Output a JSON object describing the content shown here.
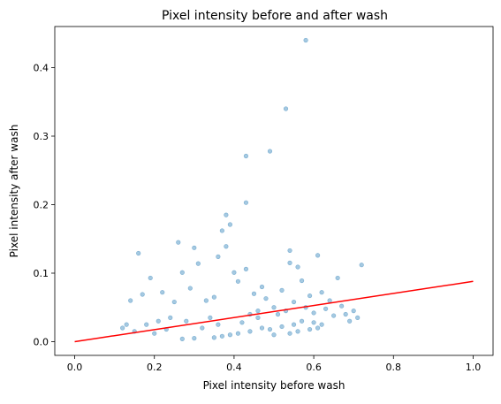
{
  "chart_data": {
    "type": "scatter",
    "title": "Pixel intensity before and after wash",
    "xlabel": "Pixel intensity before wash",
    "ylabel": "Pixel intensity after wash",
    "xlim": [
      -0.05,
      1.05
    ],
    "ylim": [
      -0.02,
      0.46
    ],
    "xticks": [
      0.0,
      0.2,
      0.4,
      0.6,
      0.8,
      1.0
    ],
    "xtick_labels": [
      "0.0",
      "0.2",
      "0.4",
      "0.6",
      "0.8",
      "1.0"
    ],
    "yticks": [
      0.0,
      0.1,
      0.2,
      0.3,
      0.4
    ],
    "ytick_labels": [
      "0.0",
      "0.1",
      "0.2",
      "0.3",
      "0.4"
    ],
    "grid": false,
    "colors": {
      "points": "#1f77b4",
      "fit_line": "#ff0000"
    },
    "series": [
      {
        "kind": "points",
        "x": [
          0.58,
          0.53,
          0.49,
          0.43,
          0.43,
          0.38,
          0.39,
          0.37,
          0.54,
          0.38,
          0.26,
          0.3,
          0.16,
          0.36,
          0.61,
          0.31,
          0.54,
          0.56,
          0.19,
          0.4,
          0.43,
          0.27,
          0.41,
          0.57,
          0.66,
          0.72,
          0.17,
          0.14,
          0.22,
          0.25,
          0.29,
          0.33,
          0.35,
          0.45,
          0.47,
          0.48,
          0.52,
          0.55,
          0.59,
          0.62,
          0.64,
          0.67,
          0.7,
          0.5,
          0.46,
          0.44,
          0.34,
          0.28,
          0.24,
          0.21,
          0.18,
          0.12,
          0.13,
          0.15,
          0.2,
          0.23,
          0.32,
          0.36,
          0.42,
          0.46,
          0.51,
          0.53,
          0.58,
          0.6,
          0.63,
          0.65,
          0.68,
          0.69,
          0.71,
          0.47,
          0.49,
          0.52,
          0.55,
          0.57,
          0.6,
          0.62,
          0.44,
          0.41,
          0.39,
          0.37,
          0.35,
          0.3,
          0.27,
          0.5,
          0.54,
          0.56,
          0.59,
          0.61
        ],
        "y": [
          0.44,
          0.34,
          0.278,
          0.271,
          0.203,
          0.185,
          0.171,
          0.162,
          0.133,
          0.139,
          0.145,
          0.137,
          0.129,
          0.124,
          0.126,
          0.114,
          0.115,
          0.109,
          0.093,
          0.101,
          0.106,
          0.101,
          0.088,
          0.089,
          0.093,
          0.112,
          0.069,
          0.06,
          0.072,
          0.058,
          0.078,
          0.06,
          0.065,
          0.07,
          0.08,
          0.063,
          0.075,
          0.058,
          0.067,
          0.072,
          0.06,
          0.052,
          0.045,
          0.05,
          0.045,
          0.04,
          0.035,
          0.03,
          0.035,
          0.03,
          0.025,
          0.02,
          0.025,
          0.015,
          0.012,
          0.018,
          0.02,
          0.025,
          0.028,
          0.035,
          0.04,
          0.045,
          0.05,
          0.042,
          0.048,
          0.038,
          0.04,
          0.03,
          0.035,
          0.02,
          0.018,
          0.022,
          0.025,
          0.03,
          0.028,
          0.025,
          0.015,
          0.012,
          0.01,
          0.008,
          0.006,
          0.005,
          0.004,
          0.01,
          0.012,
          0.015,
          0.018,
          0.02
        ]
      },
      {
        "kind": "line",
        "x": [
          0.0,
          1.0
        ],
        "y": [
          0.0,
          0.088
        ]
      }
    ]
  }
}
